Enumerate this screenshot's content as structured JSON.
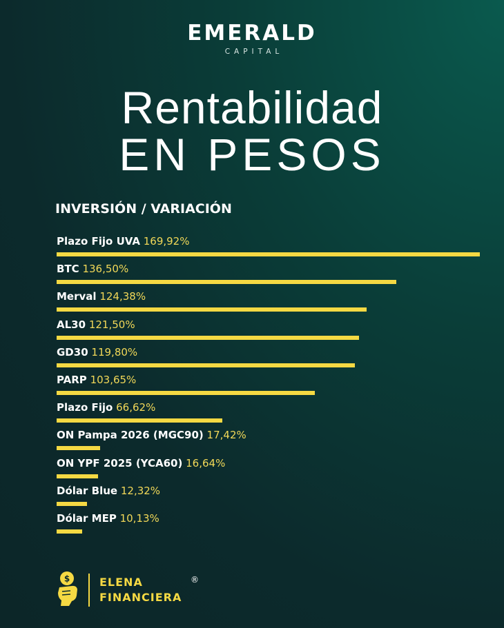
{
  "brand": {
    "name": "EMERALD",
    "sub": "CAPITAL"
  },
  "title": {
    "line1": "Rentabilidad",
    "line2": "EN PESOS"
  },
  "section_header": "INVERSIÓN / VARIACIÓN",
  "colors": {
    "bar": "#f5d943",
    "value_text": "#f2d858",
    "accent_mint": "#7fd3b8"
  },
  "chart_data": {
    "type": "bar",
    "orientation": "horizontal",
    "unit": "%",
    "categories": [
      "Plazo Fijo UVA",
      "BTC",
      "Merval",
      "AL30",
      "GD30",
      "PARP",
      "Plazo Fijo",
      "ON Pampa 2026 (MGC90)",
      "ON YPF 2025 (YCA60)",
      "Dólar Blue",
      "Dólar MEP"
    ],
    "values": [
      169.92,
      136.5,
      124.38,
      121.5,
      119.8,
      103.65,
      66.62,
      17.42,
      16.64,
      12.32,
      10.13
    ],
    "value_labels": [
      "169,92%",
      "136,50%",
      "124,38%",
      "121,50%",
      "119,80%",
      "103,65%",
      "66,62%",
      "17,42%",
      "16,64%",
      "12,32%",
      "10,13%"
    ],
    "xlim": [
      0,
      169.92
    ],
    "grid": false,
    "legend": "none"
  },
  "footer": {
    "line1": "ELENA",
    "line2": "FINANCIERA",
    "registered": "®",
    "logo_icon": "hand-coin-icon"
  }
}
